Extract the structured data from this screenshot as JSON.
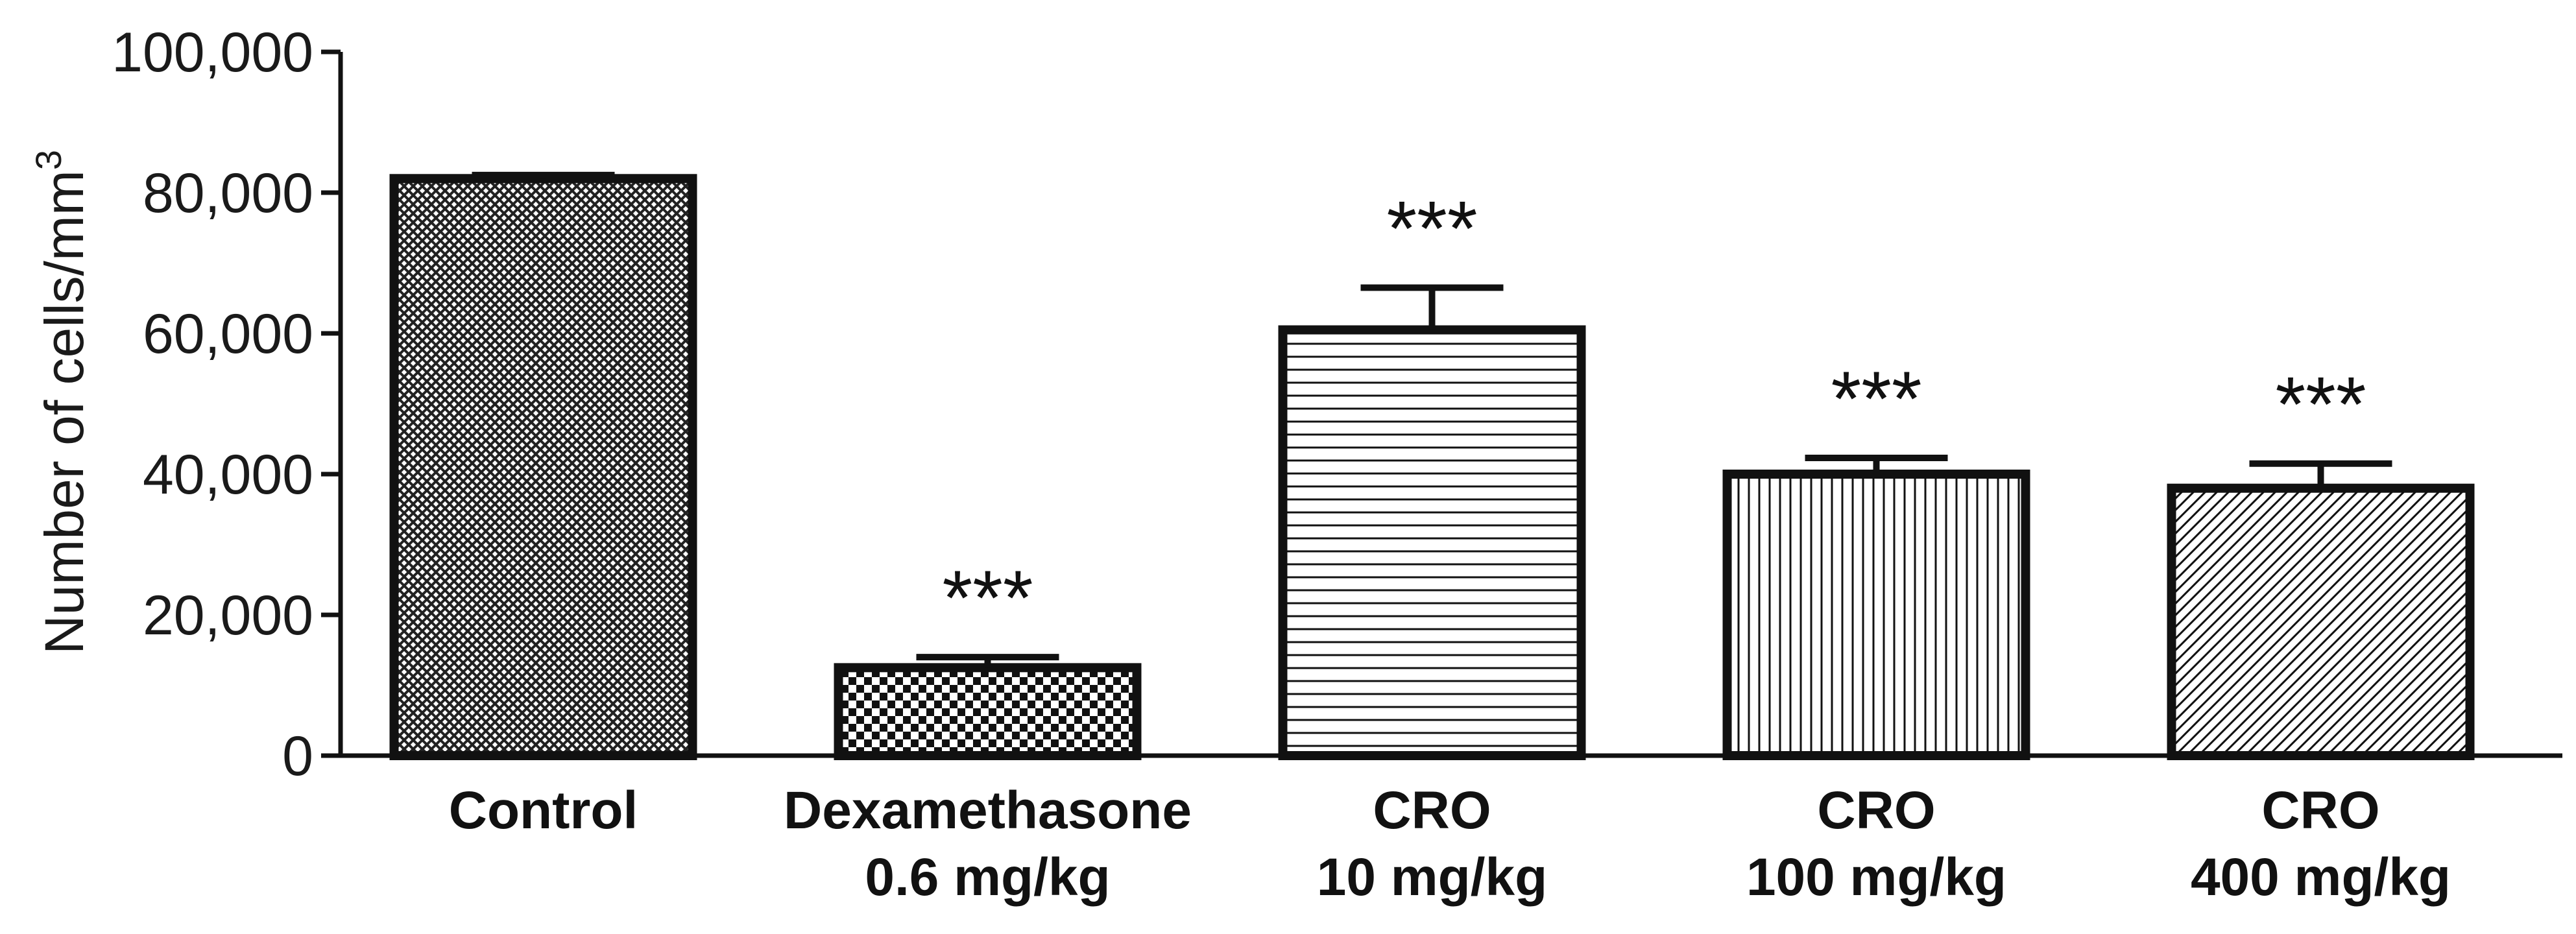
{
  "chart_data": {
    "type": "bar",
    "title": "",
    "xlabel": "",
    "ylabel": "Number of cells/mm",
    "ylabel_superscript": "3",
    "ylim": [
      0,
      100000
    ],
    "yticks": [
      0,
      20000,
      40000,
      60000,
      80000,
      100000
    ],
    "ytick_labels": [
      "0",
      "20,000",
      "40,000",
      "60,000",
      "80,000",
      "100,000"
    ],
    "grid": false,
    "categories": [
      {
        "line1": "Control",
        "line2": ""
      },
      {
        "line1": "Dexamethasone",
        "line2": "0.6 mg/kg"
      },
      {
        "line1": "CRO",
        "line2": "10 mg/kg"
      },
      {
        "line1": "CRO",
        "line2": "100 mg/kg"
      },
      {
        "line1": "CRO",
        "line2": "400 mg/kg"
      }
    ],
    "values": [
      82000,
      12500,
      60500,
      40000,
      38000
    ],
    "errors": [
      500,
      1500,
      6000,
      2300,
      3500
    ],
    "significance": [
      "",
      "***",
      "***",
      "***",
      "***"
    ],
    "patterns": [
      "crosshatch-fine",
      "checker",
      "horizontal-lines",
      "vertical-lines",
      "diagonal-lines"
    ],
    "colors": {
      "stroke": "#111111",
      "fill_bg": "#ffffff",
      "axis": "#111111"
    }
  }
}
